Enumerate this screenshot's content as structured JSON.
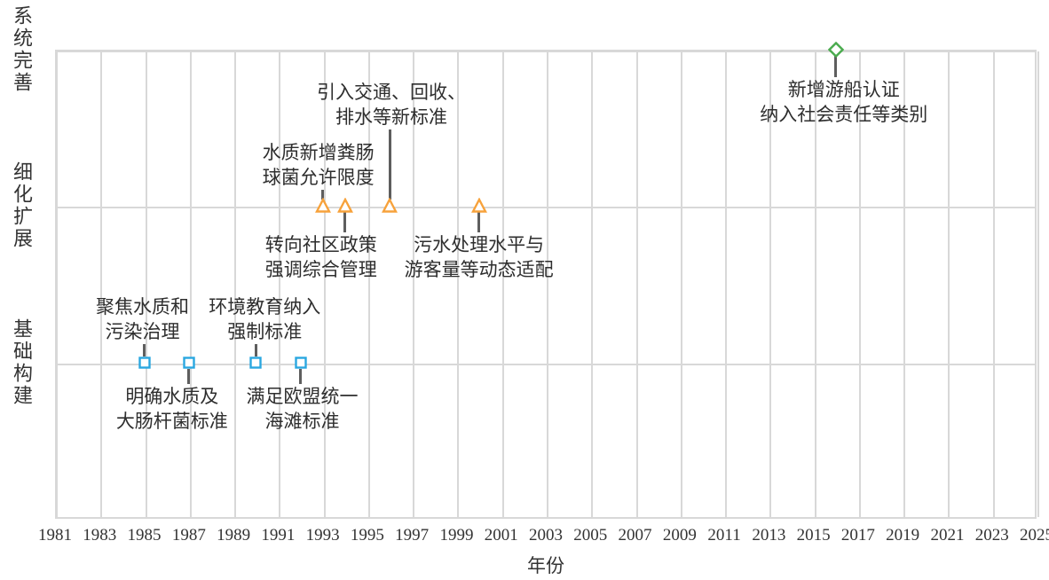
{
  "chart_data": {
    "type": "scatter",
    "title": "",
    "xlabel": "年份",
    "grid": true,
    "legend": "none",
    "x_axis": {
      "min": 1981,
      "max": 2025,
      "tick_step": 2,
      "ticks": [
        1981,
        1983,
        1985,
        1987,
        1989,
        1991,
        1993,
        1995,
        1997,
        1999,
        2001,
        2003,
        2005,
        2007,
        2009,
        2011,
        2013,
        2015,
        2017,
        2019,
        2021,
        2023,
        2025
      ]
    },
    "y_axis": {
      "levels": [
        {
          "value": 1,
          "label": "基础构建"
        },
        {
          "value": 2,
          "label": "细化扩展"
        },
        {
          "value": 3,
          "label": "系统完善"
        }
      ]
    },
    "series": [
      {
        "name": "基础构建",
        "level": 1,
        "marker": "square",
        "color": "#2aa7e0",
        "points": [
          {
            "year": 1985,
            "label_lines": [
              "聚焦水质和",
              "污染治理"
            ],
            "label_side": "above",
            "label_gap": 35,
            "label_dx": -2
          },
          {
            "year": 1987,
            "label_lines": [
              "明确水质及",
              "大肠杆菌标准"
            ],
            "label_side": "below",
            "label_gap": 38,
            "label_dx": -19
          },
          {
            "year": 1990,
            "label_lines": [
              "环境教育纳入",
              "强制标准"
            ],
            "label_side": "above",
            "label_gap": 35,
            "label_dx": 10
          },
          {
            "year": 1992,
            "label_lines": [
              "满足欧盟统一",
              "海滩标准"
            ],
            "label_side": "below",
            "label_gap": 38,
            "label_dx": 2
          }
        ]
      },
      {
        "name": "细化扩展",
        "level": 2,
        "marker": "triangle",
        "color": "#f7a23b",
        "points": [
          {
            "year": 1993,
            "label_lines": [
              "水质新增粪肠",
              "球菌允许限度"
            ],
            "label_side": "above",
            "label_gap": 32,
            "label_dx": -5
          },
          {
            "year": 1994,
            "label_lines": [
              "转向社区政策",
              "强调综合管理"
            ],
            "label_side": "below",
            "label_gap": 44,
            "label_dx": -27
          },
          {
            "year": 1996,
            "label_lines": [
              "引入交通、回收、",
              "排水等新标准"
            ],
            "label_side": "above",
            "label_gap": 100,
            "label_dx": 2
          },
          {
            "year": 2000,
            "label_lines": [
              "污水处理水平与",
              "游客量等动态适配"
            ],
            "label_side": "below",
            "label_gap": 44,
            "label_dx": 0
          }
        ]
      },
      {
        "name": "系统完善",
        "level": 3,
        "marker": "diamond",
        "color": "#4aab4e",
        "points": [
          {
            "year": 2016,
            "label_lines": [
              "新增游船认证",
              "纳入社会责任等类别"
            ],
            "label_side": "below",
            "label_gap": 45,
            "label_dx": 9
          }
        ]
      }
    ],
    "colors": {
      "grid": "#d8d8d8",
      "text": "#333333",
      "stem": "#5e5e5e",
      "background": "#ffffff"
    }
  }
}
